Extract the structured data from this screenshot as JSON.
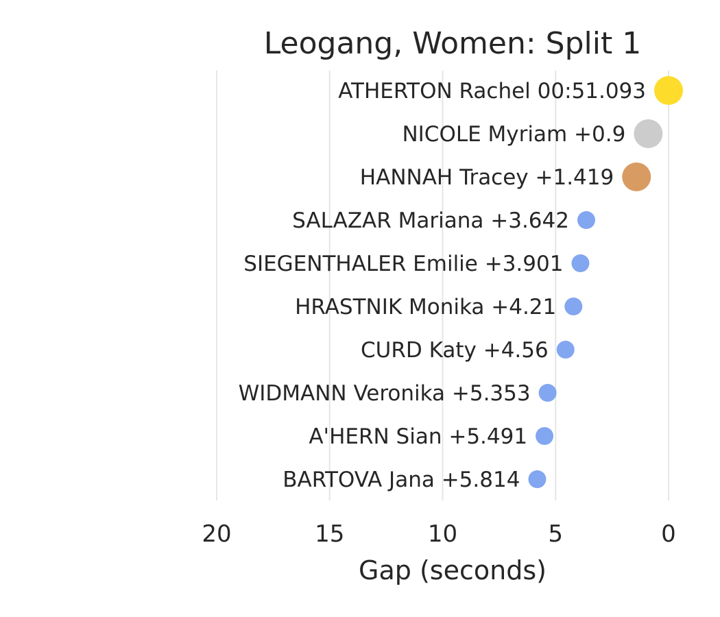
{
  "chart_data": {
    "type": "scatter",
    "title": "Leogang, Women: Split 1",
    "xlabel": "Gap (seconds)",
    "ylabel": "",
    "xlim": [
      20,
      0
    ],
    "x_inverted": true,
    "grid": "vertical",
    "xticks": [
      20,
      15,
      10,
      5,
      0
    ],
    "points": [
      {
        "label": "ATHERTON Rachel 00:51.093",
        "gap": 0.0,
        "medal": "gold"
      },
      {
        "label": "NICOLE Myriam +0.9",
        "gap": 0.9,
        "medal": "silver"
      },
      {
        "label": "HANNAH Tracey +1.419",
        "gap": 1.419,
        "medal": "bronze"
      },
      {
        "label": "SALAZAR Mariana +3.642",
        "gap": 3.642,
        "medal": "none"
      },
      {
        "label": "SIEGENTHALER Emilie +3.901",
        "gap": 3.901,
        "medal": "none"
      },
      {
        "label": "HRASTNIK Monika +4.21",
        "gap": 4.21,
        "medal": "none"
      },
      {
        "label": "CURD Katy +4.56",
        "gap": 4.56,
        "medal": "none"
      },
      {
        "label": "WIDMANN Veronika +5.353",
        "gap": 5.353,
        "medal": "none"
      },
      {
        "label": "A'HERN Sian +5.491",
        "gap": 5.491,
        "medal": "none"
      },
      {
        "label": "BARTOVA Jana +5.814",
        "gap": 5.814,
        "medal": "none"
      }
    ],
    "colors": {
      "gold": "#FDDC2C",
      "silver": "#CCCCCC",
      "bronze": "#D89C62",
      "none": "#82A6EF"
    }
  }
}
